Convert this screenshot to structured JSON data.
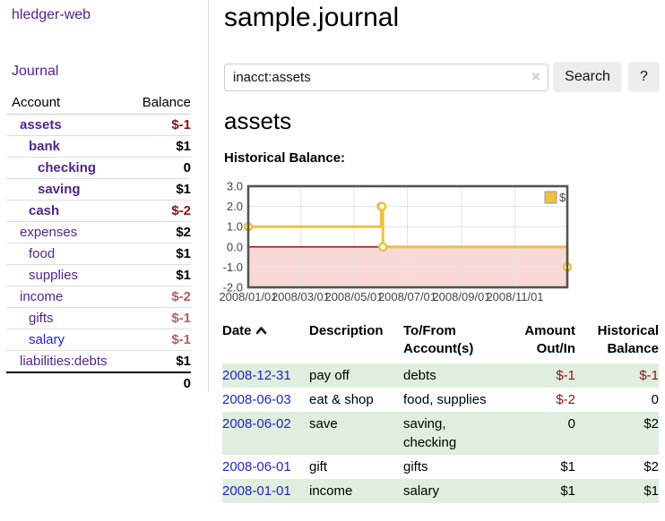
{
  "sidebar": {
    "app_title": "hledger-web",
    "nav": {
      "journal_label": "Journal"
    },
    "accounts_table": {
      "headers": {
        "account": "Account",
        "balance": "Balance"
      },
      "rows": [
        {
          "account": "assets",
          "balance": "$-1",
          "indent": 1,
          "bold": true,
          "balance_style": "neg-strong",
          "link_style": "purple"
        },
        {
          "account": "bank",
          "balance": "$1",
          "indent": 2,
          "bold": true,
          "balance_style": "pos",
          "link_style": "purple"
        },
        {
          "account": "checking",
          "balance": "0",
          "indent": 3,
          "bold": true,
          "balance_style": "pos",
          "link_style": "purple"
        },
        {
          "account": "saving",
          "balance": "$1",
          "indent": 3,
          "bold": true,
          "balance_style": "pos",
          "link_style": "purple"
        },
        {
          "account": "cash",
          "balance": "$-2",
          "indent": 2,
          "bold": true,
          "balance_style": "neg-strong",
          "link_style": "purple"
        },
        {
          "account": "expenses",
          "balance": "$2",
          "indent": 1,
          "bold": false,
          "balance_style": "pos",
          "link_style": "purple"
        },
        {
          "account": "food",
          "balance": "$1",
          "indent": 2,
          "bold": false,
          "balance_style": "pos",
          "link_style": "purple"
        },
        {
          "account": "supplies",
          "balance": "$1",
          "indent": 2,
          "bold": false,
          "balance_style": "pos",
          "link_style": "purple"
        },
        {
          "account": "income",
          "balance": "$-2",
          "indent": 1,
          "bold": false,
          "balance_style": "neg-soft",
          "link_style": "purple"
        },
        {
          "account": "gifts",
          "balance": "$-1",
          "indent": 2,
          "bold": false,
          "balance_style": "neg-soft",
          "link_style": "purple"
        },
        {
          "account": "salary",
          "balance": "$-1",
          "indent": 2,
          "bold": false,
          "balance_style": "neg-soft",
          "link_style": "blue"
        },
        {
          "account": "liabilities:debts",
          "balance": "$1",
          "indent": 1,
          "bold": false,
          "balance_style": "pos",
          "link_style": "purple"
        }
      ],
      "total": "0"
    }
  },
  "header": {
    "title": "sample.journal"
  },
  "search": {
    "value": "inacct:assets",
    "clear_label": "×",
    "button_label": "Search",
    "help_label": "?"
  },
  "account_page": {
    "heading": "assets",
    "chart_label": "Historical Balance:"
  },
  "chart_data": {
    "type": "line",
    "step": true,
    "title": "Historical Balance",
    "series": [
      {
        "name": "$",
        "color": "#edc240",
        "points": [
          [
            "2008-01-01",
            1
          ],
          [
            "2008-06-01",
            2
          ],
          [
            "2008-06-02",
            2
          ],
          [
            "2008-06-03",
            0
          ],
          [
            "2008-12-31",
            -1
          ]
        ]
      }
    ],
    "xlim": [
      "2008-01-01",
      "2008-12-31"
    ],
    "ylim": [
      -2,
      3
    ],
    "yticks": [
      {
        "value": 3,
        "label": "3.0"
      },
      {
        "value": 2,
        "label": "2.0"
      },
      {
        "value": 1,
        "label": "1.0"
      },
      {
        "value": 0,
        "label": "0.0"
      },
      {
        "value": -1,
        "label": "-1.0"
      },
      {
        "value": -2,
        "label": "-2.0"
      }
    ],
    "xticks": [
      {
        "date": "2008-01-01",
        "label": "2008/01/01"
      },
      {
        "date": "2008-03-01",
        "label": "2008/03/01"
      },
      {
        "date": "2008-05-01",
        "label": "2008/05/01"
      },
      {
        "date": "2008-07-01",
        "label": "2008/07/01"
      },
      {
        "date": "2008-09-01",
        "label": "2008/09/01"
      },
      {
        "date": "2008-11-01",
        "label": "2008/11/01"
      }
    ],
    "legend": {
      "label": "$",
      "position": "top-right"
    },
    "grid": true,
    "negative_region_fill": "#f9d8d8",
    "zero_line_color": "#8b0000"
  },
  "register_table": {
    "headers": {
      "date": "Date",
      "description": "Description",
      "accounts": "To/From Account(s)",
      "amount": "Amount Out/In",
      "balance": "Historical Balance"
    },
    "sort": {
      "column": "date",
      "direction": "asc"
    },
    "rows": [
      {
        "date": "2008-12-31",
        "description": "pay off",
        "accounts": "debts",
        "amount": "$-1",
        "amount_negative": true,
        "balance": "$-1",
        "balance_negative": true,
        "highlight": true
      },
      {
        "date": "2008-06-03",
        "description": "eat & shop",
        "accounts": "food, supplies",
        "amount": "$-2",
        "amount_negative": true,
        "balance": "0",
        "balance_negative": false,
        "highlight": false
      },
      {
        "date": "2008-06-02",
        "description": "save",
        "accounts": "saving, checking",
        "amount": "0",
        "amount_negative": false,
        "balance": "$2",
        "balance_negative": false,
        "highlight": true
      },
      {
        "date": "2008-06-01",
        "description": "gift",
        "accounts": "gifts",
        "amount": "$1",
        "amount_negative": false,
        "balance": "$2",
        "balance_negative": false,
        "highlight": false
      },
      {
        "date": "2008-01-01",
        "description": "income",
        "accounts": "salary",
        "amount": "$1",
        "amount_negative": false,
        "balance": "$1",
        "balance_negative": false,
        "highlight": true
      }
    ]
  }
}
